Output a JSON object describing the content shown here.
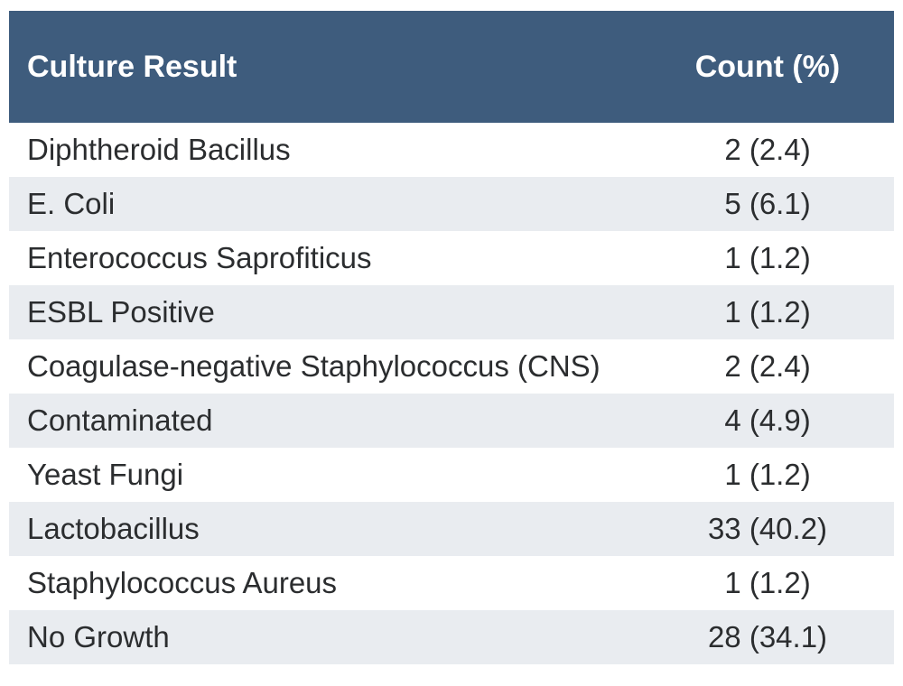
{
  "chart_data": {
    "type": "table",
    "columns": [
      "Culture Result",
      "Count (%)"
    ],
    "rows": [
      [
        "Diphtheroid Bacillus",
        "2 (2.4)"
      ],
      [
        "E. Coli",
        "5 (6.1)"
      ],
      [
        "Enterococcus Saprofiticus",
        "1 (1.2)"
      ],
      [
        "ESBL Positive",
        "1 (1.2)"
      ],
      [
        "Coagulase-negative Staphylococcus (CNS)",
        "2 (2.4)"
      ],
      [
        "Contaminated",
        "4 (4.9)"
      ],
      [
        "Yeast Fungi",
        "1 (1.2)"
      ],
      [
        "Lactobacillus",
        "33 (40.2)"
      ],
      [
        "Staphylococcus Aureus",
        "1 (1.2)"
      ],
      [
        "No Growth",
        "28 (34.1)"
      ]
    ],
    "counts": [
      2,
      5,
      1,
      1,
      2,
      4,
      1,
      33,
      1,
      28
    ],
    "percentages": [
      2.4,
      6.1,
      1.2,
      1.2,
      2.4,
      4.9,
      1.2,
      40.2,
      1.2,
      34.1
    ],
    "layout": {
      "zebra_striping": true,
      "first_body_row_background": "white",
      "alternate_row_background": "light-gray"
    }
  },
  "colors": {
    "header_bg": "#3e5c7d",
    "header_text": "#ffffff",
    "row_alt_bg": "#e9ecf0",
    "row_bg": "#ffffff",
    "body_text": "#2b2d2f",
    "page_bg": "#ffffff"
  }
}
